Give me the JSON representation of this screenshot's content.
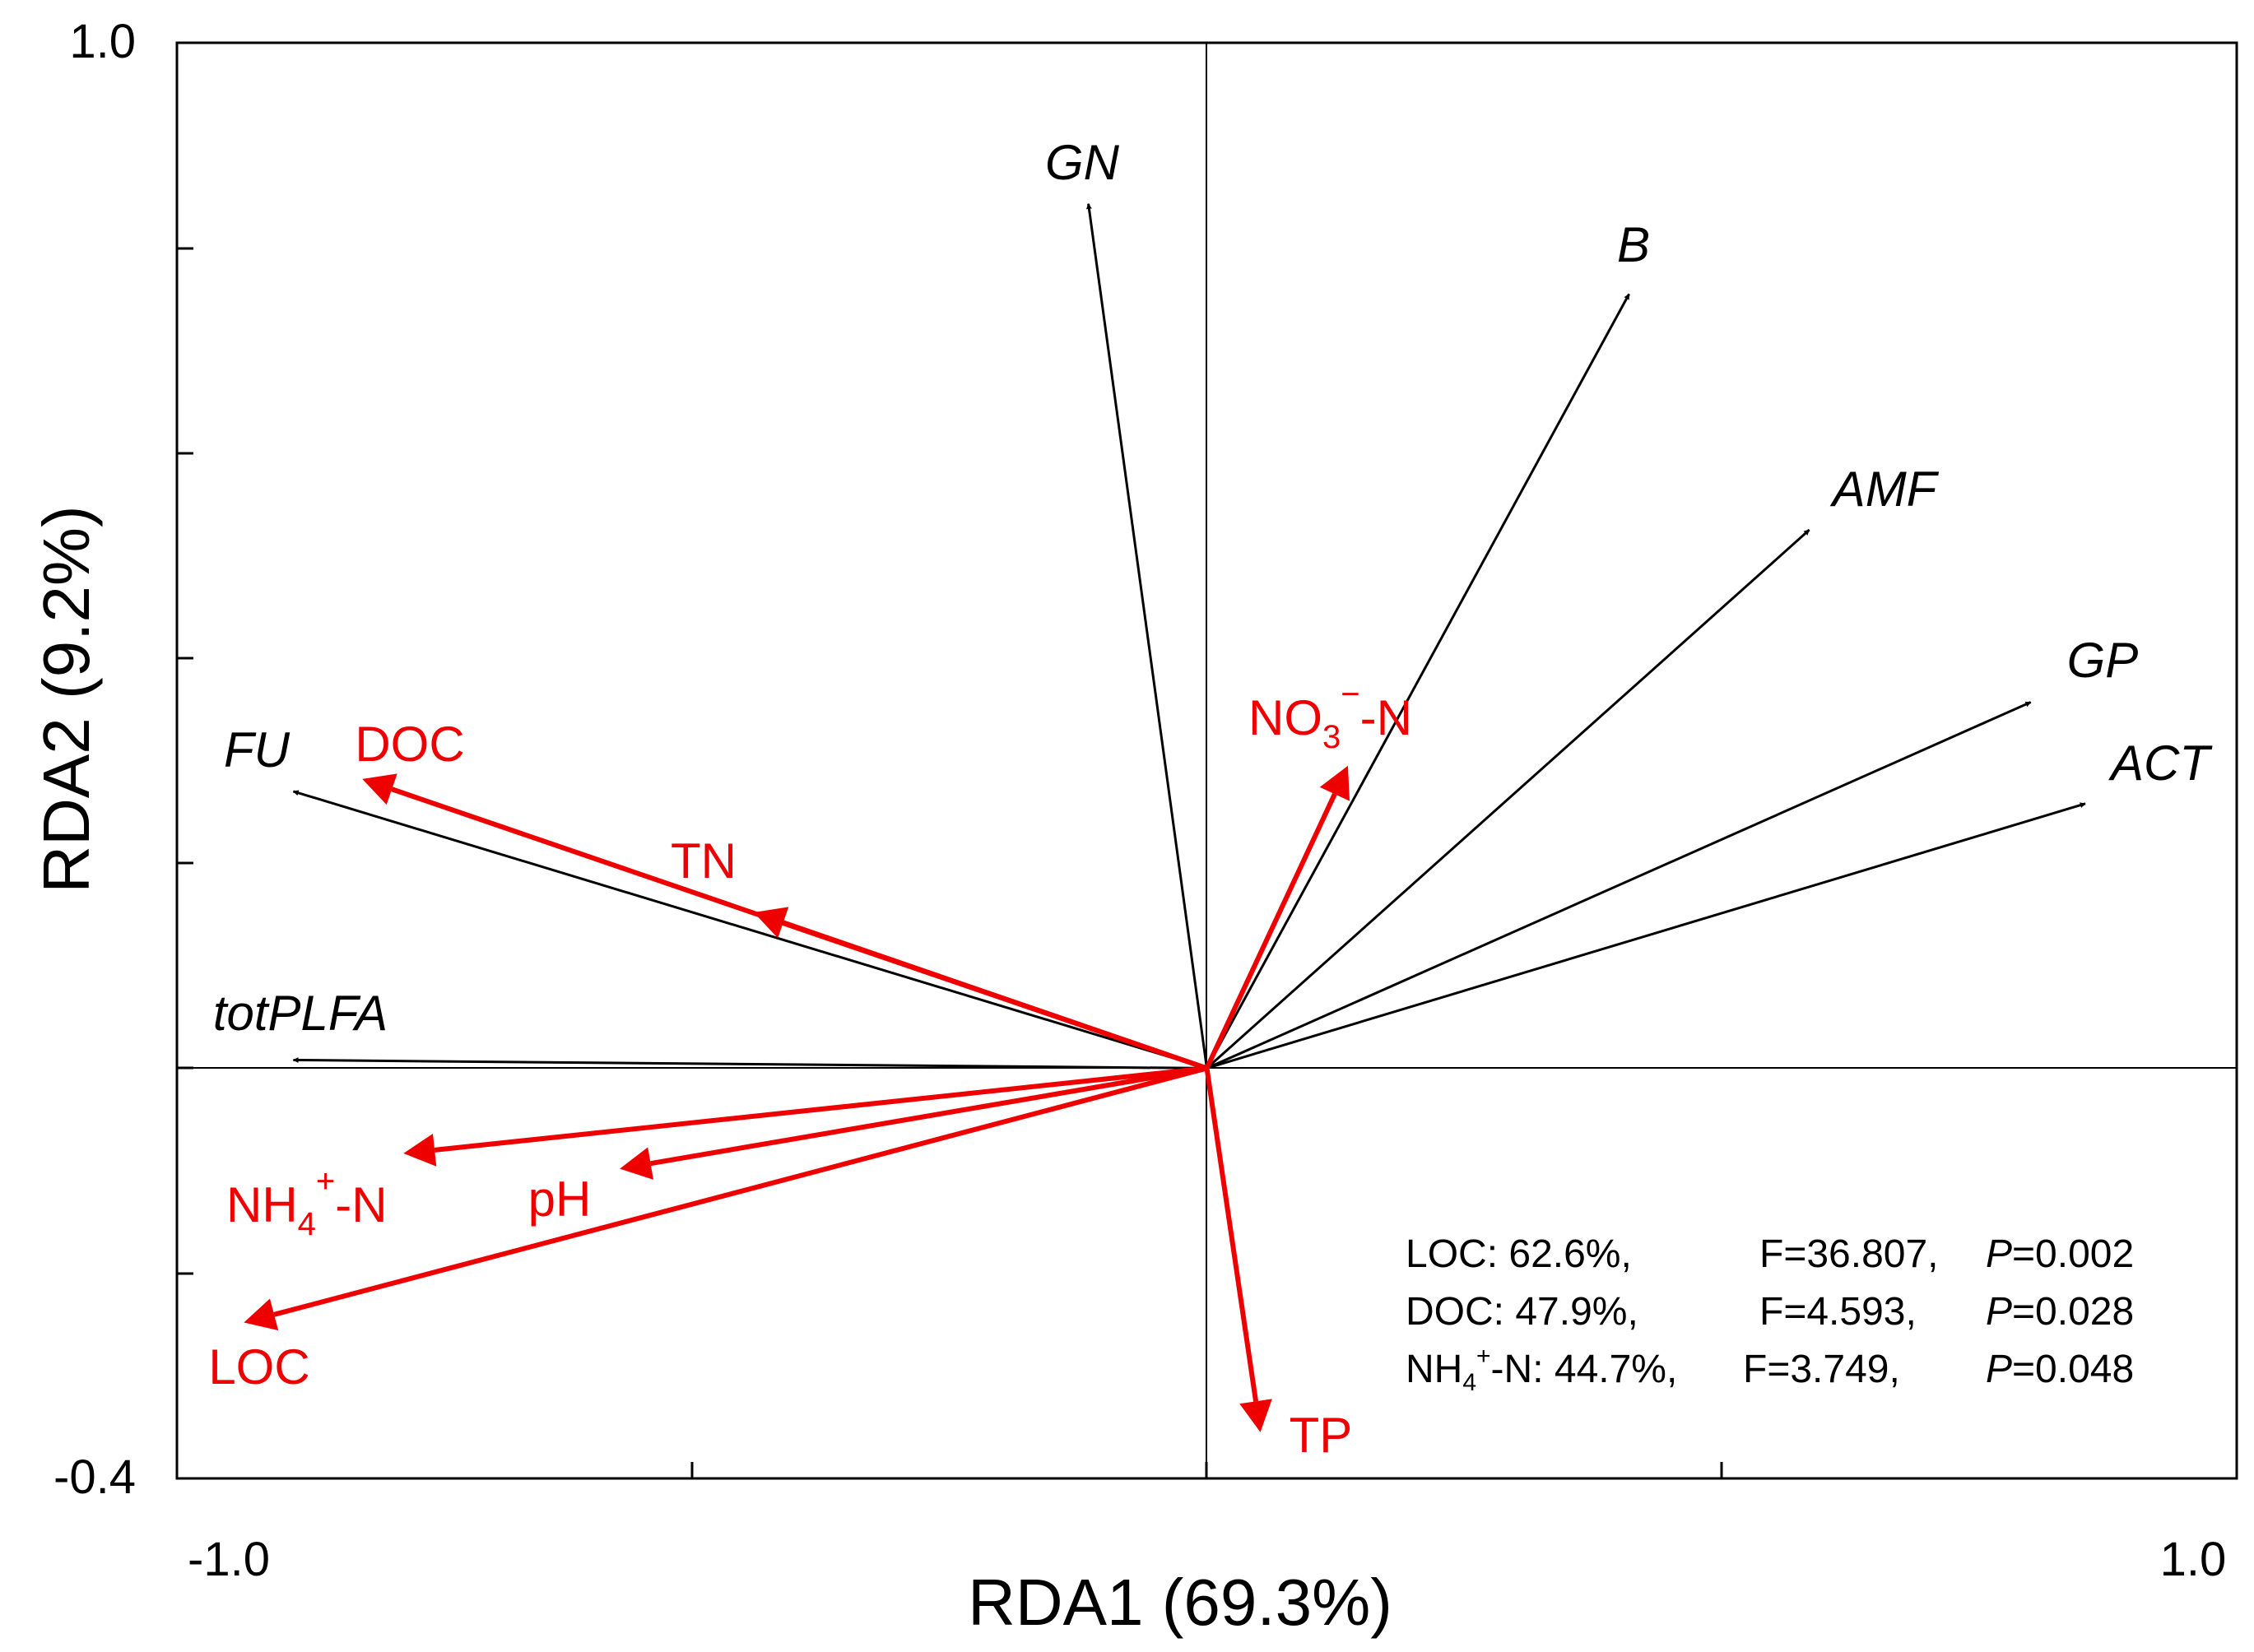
{
  "chart_data": {
    "type": "biplot",
    "title": "",
    "xlabel": "RDA1 (69.3%)",
    "ylabel": "RDA2 (9.2%)",
    "xlim": [
      -1.0,
      1.0
    ],
    "ylim": [
      -0.4,
      1.0
    ],
    "x_tick_labels": [
      "-1.0",
      "1.0"
    ],
    "y_tick_labels": [
      "1.0",
      "-0.4"
    ],
    "grid": false,
    "species": [
      {
        "name": "GN",
        "x": -0.115,
        "y": 0.843
      },
      {
        "name": "B",
        "x": 0.41,
        "y": 0.755
      },
      {
        "name": "AMF",
        "x": 0.585,
        "y": 0.525
      },
      {
        "name": "GP",
        "x": 0.8,
        "y": 0.357
      },
      {
        "name": "ACT",
        "x": 0.853,
        "y": 0.258
      },
      {
        "name": "FU",
        "x": -0.887,
        "y": 0.27
      },
      {
        "name": "totPLFA",
        "x": -0.887,
        "y": 0.008
      }
    ],
    "environment": [
      {
        "name": "DOC",
        "x": -0.82,
        "y": 0.282
      },
      {
        "name": "TN",
        "x": -0.44,
        "y": 0.152
      },
      {
        "name": "NO3-N",
        "x": 0.137,
        "y": 0.295
      },
      {
        "name": "NH4+-N",
        "x": -0.78,
        "y": -0.083
      },
      {
        "name": "pH",
        "x": -0.57,
        "y": -0.098
      },
      {
        "name": "LOC",
        "x": -0.935,
        "y": -0.248
      },
      {
        "name": "TP",
        "x": 0.052,
        "y": -0.355
      }
    ],
    "colors": {
      "species": "#000000",
      "environment": "#ee0000"
    },
    "annotation": {
      "rows": [
        {
          "var": "LOC: 62.6%,",
          "f": "F=36.807,",
          "p_letter": "P",
          "p_value": "=0.002"
        },
        {
          "var": "DOC: 47.9%,",
          "f": "F=4.593,",
          "p_letter": "P",
          "p_value": "=0.028"
        },
        {
          "var_main": "NH",
          "var_sub": "4",
          "var_sup": "+",
          "var_rest": "-N: 44.7%,",
          "f": "F=3.749,",
          "p_letter": "P",
          "p_value": "=0.048"
        }
      ]
    }
  }
}
